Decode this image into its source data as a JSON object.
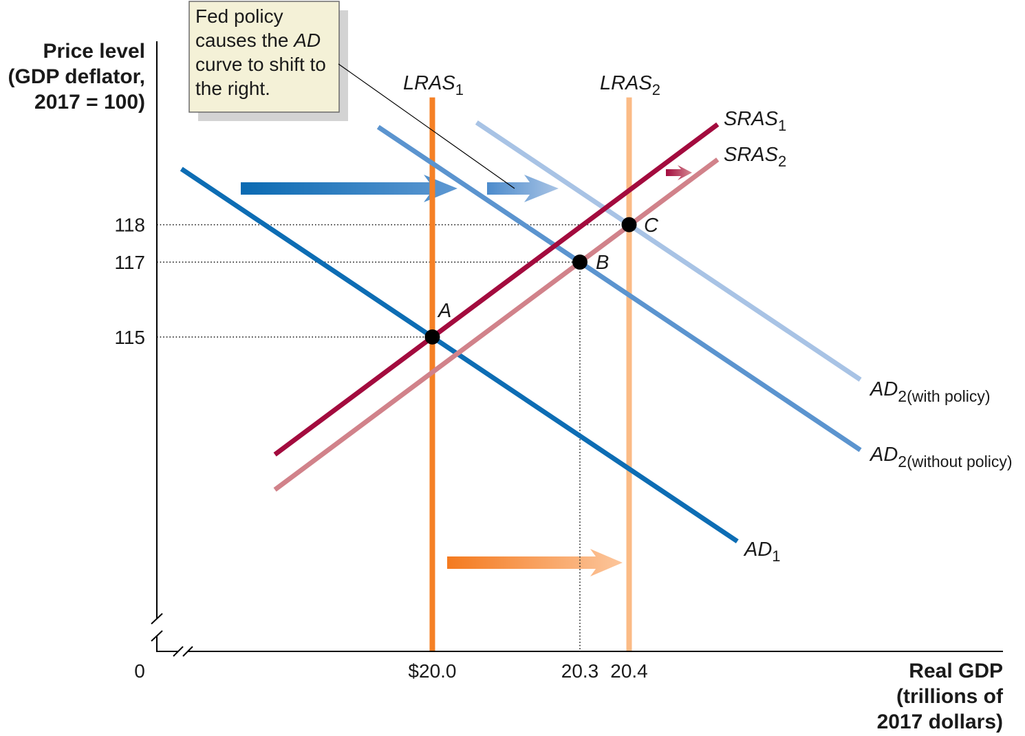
{
  "callout": {
    "line1": "Fed policy",
    "line2_prefix": "causes the ",
    "line2_italic": "AD",
    "line3": "curve to shift to",
    "line4": "the right."
  },
  "chart_data": {
    "type": "line",
    "ylabel_lines": [
      "Price level",
      "(GDP deflator,",
      "2017 = 100)"
    ],
    "xlabel_lines": [
      "Real GDP",
      "(trillions of",
      "2017 dollars)"
    ],
    "origin_label": "0",
    "axis_break": {
      "x": true,
      "y": true
    },
    "grid": false,
    "xlim": [
      19.44,
      21.16
    ],
    "ylim": [
      106.6,
      122.9
    ],
    "x_ticks": [
      {
        "value": 20.0,
        "label": "$20.0"
      },
      {
        "value": 20.3,
        "label": "20.3"
      },
      {
        "value": 20.4,
        "label": "20.4"
      }
    ],
    "y_ticks": [
      {
        "value": 118,
        "label": "118"
      },
      {
        "value": 117,
        "label": "117"
      },
      {
        "value": 115,
        "label": "115"
      }
    ],
    "series": [
      {
        "name": "LRAS",
        "sub": "1",
        "color": "#f58025",
        "x": [
          20.0,
          20.0
        ],
        "y": [
          106.6,
          121.4
        ]
      },
      {
        "name": "LRAS",
        "sub": "2",
        "color": "#fbbb86",
        "x": [
          20.4,
          20.4
        ],
        "y": [
          106.6,
          121.4
        ]
      },
      {
        "name": "AD",
        "sub": "2(with policy)",
        "color": "#a8c3e5",
        "x": [
          20.09,
          20.87
        ],
        "y": [
          120.73,
          113.86
        ]
      },
      {
        "name": "AD",
        "sub": "2(without policy)",
        "color": "#5b94cf",
        "x": [
          19.89,
          20.87
        ],
        "y": [
          120.61,
          111.98
        ]
      },
      {
        "name": "AD",
        "sub": "1",
        "color": "#0d6db4",
        "x": [
          19.49,
          20.62
        ],
        "y": [
          119.49,
          109.54
        ]
      },
      {
        "name": "SRAS",
        "sub": "2",
        "color": "#d1828a",
        "x": [
          19.68,
          20.58
        ],
        "y": [
          110.92,
          119.74
        ]
      },
      {
        "name": "SRAS",
        "sub": "1",
        "color": "#a30b3e",
        "x": [
          19.68,
          20.58
        ],
        "y": [
          111.86,
          120.68
        ]
      }
    ],
    "points": [
      {
        "label": "A",
        "x": 20.0,
        "y": 115,
        "guide_to_y_axis": true,
        "guide_to_x_axis": false
      },
      {
        "label": "B",
        "x": 20.3,
        "y": 117,
        "guide_to_y_axis": true,
        "guide_to_x_axis": true
      },
      {
        "label": "C",
        "x": 20.4,
        "y": 118,
        "guide_to_y_axis": true,
        "guide_to_x_axis": false
      }
    ]
  }
}
